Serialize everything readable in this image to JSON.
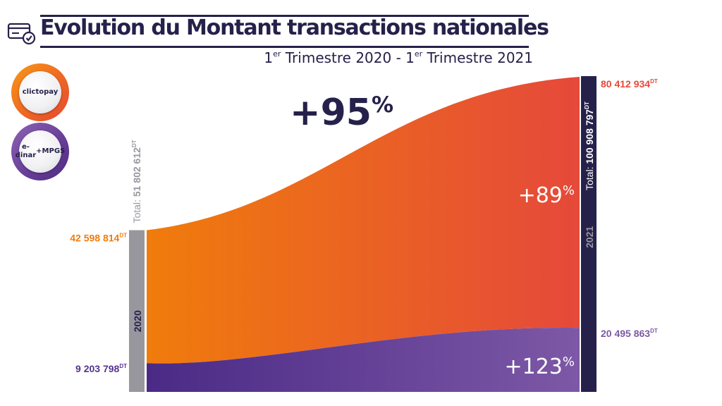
{
  "header": {
    "title": "Evolution du Montant transactions nationales",
    "subtitle_part1": "1",
    "subtitle_sup1": "er",
    "subtitle_part2": " Trimestre 2020 - 1",
    "subtitle_sup2": "er",
    "subtitle_part3": " Trimestre 2021"
  },
  "legend": {
    "clictopay": "clictopay",
    "edinar_line1": "e-dinar",
    "edinar_line2": "+MPGS"
  },
  "colors": {
    "navy": "#25214a",
    "orange_start": "#f07c0c",
    "orange_end": "#e5493a",
    "purple_start": "#4a2a86",
    "purple_end": "#7d58a6",
    "gray_bar": "#98979e",
    "label_orange": "#f07c0c",
    "label_red": "#e5493a",
    "label_purple": "#56348e",
    "label_purple_light": "#7c5aa5"
  },
  "chart_data": {
    "type": "area",
    "x": [
      "2020",
      "2021"
    ],
    "series": [
      {
        "name": "e-dinar +MPGS",
        "values": [
          9203798,
          20495863
        ],
        "value_labels": [
          "9 203 798",
          "20 495 863"
        ],
        "growth": "+123%"
      },
      {
        "name": "clictopay",
        "values": [
          42598814,
          80412934
        ],
        "value_labels": [
          "42 598 814",
          "80 412 934"
        ],
        "growth": "+89%"
      }
    ],
    "totals": [
      {
        "period": "2020",
        "prefix": "Total: ",
        "value": 51802612,
        "label": "51 802 612"
      },
      {
        "period": "2021",
        "prefix": "Total: ",
        "value": 100908797,
        "label": "100 908 797"
      }
    ],
    "unit": "DT",
    "total_growth": "+95%",
    "stacked": true
  }
}
